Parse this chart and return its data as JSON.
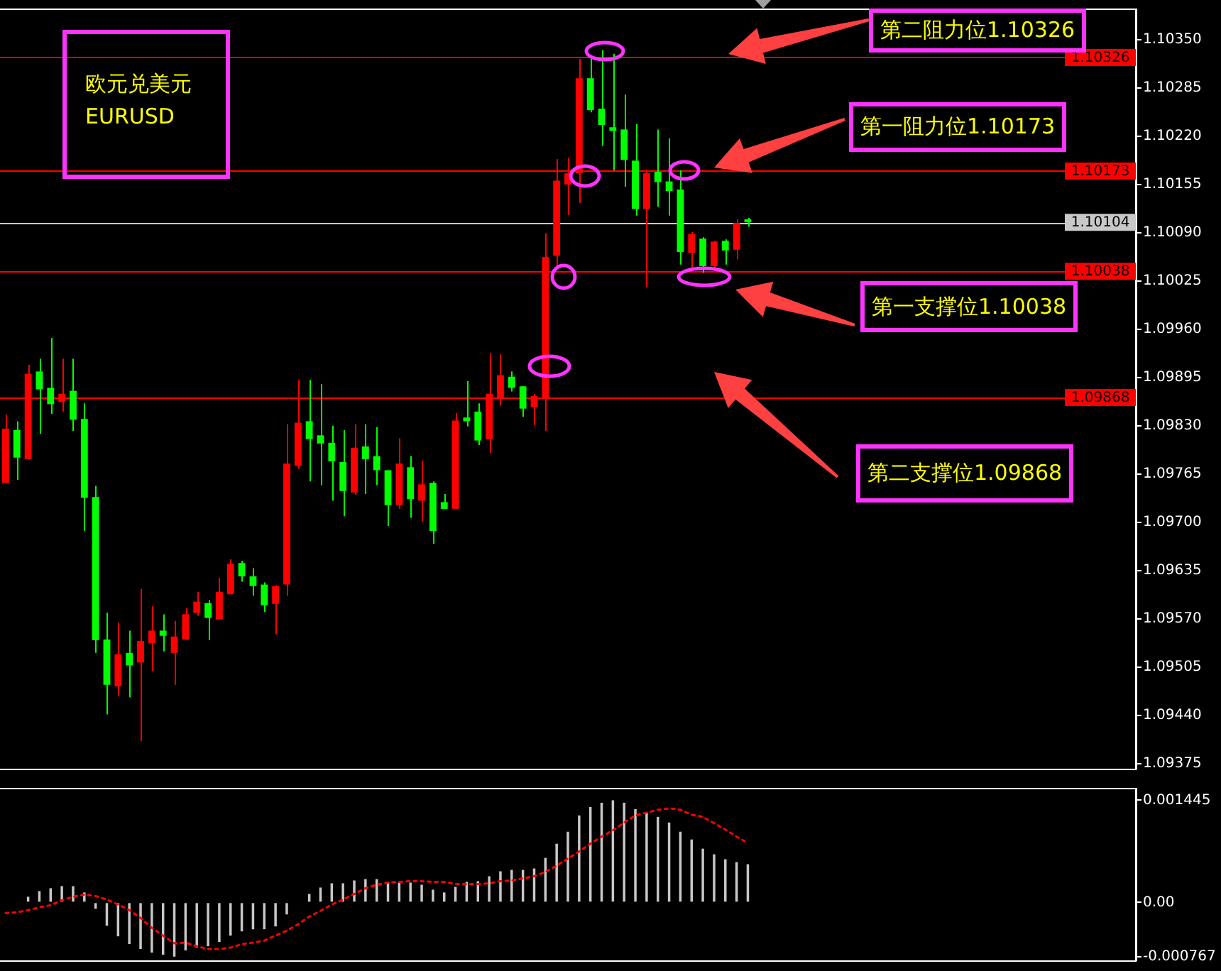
{
  "chart_data": [
    {
      "type": "candlestick",
      "categories": [
        null,
        null,
        null,
        null,
        null,
        null,
        null,
        null,
        null,
        null,
        null,
        null,
        null,
        null,
        null,
        null,
        null,
        null,
        null,
        null,
        null,
        null,
        null,
        null,
        null,
        null,
        null,
        null,
        null,
        null,
        null,
        null,
        null,
        null,
        null,
        null,
        null,
        null,
        null,
        null,
        null,
        null,
        null,
        null,
        null,
        null,
        null,
        null,
        null,
        null,
        null,
        null,
        null,
        null,
        null,
        null,
        null,
        null,
        null,
        null,
        null,
        null,
        null,
        null,
        null,
        null,
        null,
        null,
        null,
        null,
        null,
        null,
        null,
        null,
        null,
        null,
        null,
        null,
        null,
        null,
        null,
        null,
        null,
        null,
        null,
        null,
        null,
        null,
        null,
        null,
        null,
        null,
        null,
        null,
        null,
        null,
        null,
        null,
        null,
        null,
        null
      ],
      "ohlc": [
        [
          1.09753,
          1.09845,
          1.09753,
          1.09826
        ],
        [
          1.09824,
          1.09836,
          1.09757,
          1.09787
        ],
        [
          1.09785,
          1.09912,
          1.09784,
          1.099
        ],
        [
          1.09903,
          1.0992,
          1.09819,
          1.09879
        ],
        [
          1.09881,
          1.09948,
          1.09846,
          1.09859
        ],
        [
          1.09862,
          1.0992,
          1.09849,
          1.09873
        ],
        [
          1.09877,
          1.0992,
          1.09823,
          1.09838
        ],
        [
          1.09839,
          1.0986,
          1.09688,
          1.09733
        ],
        [
          1.09734,
          1.09749,
          1.09524,
          1.09541
        ],
        [
          1.09542,
          1.09578,
          1.09441,
          1.09481
        ],
        [
          1.09479,
          1.09565,
          1.09466,
          1.09522
        ],
        [
          1.09524,
          1.09554,
          1.09464,
          1.09507
        ],
        [
          1.09511,
          1.0961,
          1.09405,
          1.0954
        ],
        [
          1.09537,
          1.09587,
          1.095,
          1.09554
        ],
        [
          1.09554,
          1.09576,
          1.09526,
          1.09547
        ],
        [
          1.09524,
          1.09567,
          1.09481,
          1.09546
        ],
        [
          1.09542,
          1.09584,
          1.09541,
          1.09576
        ],
        [
          1.09578,
          1.09606,
          1.09574,
          1.09593
        ],
        [
          1.09591,
          1.09595,
          1.09541,
          1.09571
        ],
        [
          1.09569,
          1.09625,
          1.09569,
          1.09606
        ],
        [
          1.09603,
          1.0965,
          1.09603,
          1.09644
        ],
        [
          1.09645,
          1.09648,
          1.0962,
          1.09627
        ],
        [
          1.09627,
          1.09638,
          1.09601,
          1.09614
        ],
        [
          1.09616,
          1.09619,
          1.09579,
          1.09588
        ],
        [
          1.0959,
          1.09615,
          1.09549,
          1.09614
        ],
        [
          1.09616,
          1.09832,
          1.09601,
          1.09779
        ],
        [
          1.09776,
          1.09892,
          1.09772,
          1.09834
        ],
        [
          1.09836,
          1.09892,
          1.09755,
          1.09812
        ],
        [
          1.09817,
          1.09886,
          1.0975,
          1.09806
        ],
        [
          1.09807,
          1.0983,
          1.09729,
          1.09782
        ],
        [
          1.09781,
          1.09824,
          1.09708,
          1.09742
        ],
        [
          1.0974,
          1.09832,
          1.09737,
          1.098
        ],
        [
          1.09802,
          1.09832,
          1.09738,
          1.09785
        ],
        [
          1.09789,
          1.09828,
          1.0975,
          1.0977
        ],
        [
          1.0977,
          1.0977,
          1.09695,
          1.09723
        ],
        [
          1.09723,
          1.09813,
          1.09718,
          1.09779
        ],
        [
          1.09774,
          1.09789,
          1.09706,
          1.09731
        ],
        [
          1.09729,
          1.09783,
          1.09701,
          1.09751
        ],
        [
          1.09753,
          1.09755,
          1.09671,
          1.09688
        ],
        [
          1.09727,
          1.09738,
          1.09718,
          1.09718
        ],
        [
          1.09718,
          1.09847,
          1.09718,
          1.09837
        ],
        [
          1.09841,
          1.0989,
          1.09829,
          1.09836
        ],
        [
          1.09849,
          1.0986,
          1.09804,
          1.0981
        ],
        [
          1.09812,
          1.09928,
          1.09793,
          1.09873
        ],
        [
          1.09868,
          1.09926,
          1.09857,
          1.09898
        ],
        [
          1.09896,
          1.09903,
          1.09876,
          1.09881
        ],
        [
          1.09883,
          1.09883,
          1.09842,
          1.09853
        ],
        [
          1.09855,
          1.09873,
          1.09831,
          1.0987
        ],
        [
          1.09867,
          1.10089,
          1.09823,
          1.10057
        ],
        [
          1.10059,
          1.10189,
          1.10042,
          1.1016
        ],
        [
          1.10155,
          1.10191,
          1.10114,
          1.1017
        ],
        [
          1.1017,
          1.10324,
          1.1013,
          1.10298
        ],
        [
          1.10298,
          1.10326,
          1.10252,
          1.10255
        ],
        [
          1.10257,
          1.10336,
          1.10207,
          1.10235
        ],
        [
          1.10232,
          1.10331,
          1.10174,
          1.10227
        ],
        [
          1.10229,
          1.10276,
          1.10152,
          1.10188
        ],
        [
          1.10187,
          1.10236,
          1.10113,
          1.10122
        ],
        [
          1.10122,
          1.10175,
          1.10017,
          1.1017
        ],
        [
          1.10172,
          1.10229,
          1.10125,
          1.10158
        ],
        [
          1.10159,
          1.10217,
          1.10113,
          1.10146
        ],
        [
          1.10148,
          1.10174,
          1.10047,
          1.10064
        ],
        [
          1.10063,
          1.10091,
          1.10042,
          1.10088
        ],
        [
          1.10082,
          1.10084,
          1.10036,
          1.10045
        ],
        [
          1.10045,
          1.10079,
          1.10037,
          1.10078
        ],
        [
          1.10079,
          1.10081,
          1.10047,
          1.10066
        ],
        [
          1.10067,
          1.10108,
          1.10054,
          1.10103
        ],
        [
          1.10108,
          1.1011,
          1.10098,
          1.10104
        ],
        null,
        null,
        null,
        null,
        null,
        null,
        null,
        null,
        null,
        null,
        null,
        null,
        null,
        null,
        null,
        null,
        null,
        null,
        null,
        null,
        null,
        null,
        null,
        null,
        null,
        null,
        null,
        null,
        null,
        null,
        null,
        null,
        null,
        null
      ],
      "colors": [
        "#ff0000",
        "#00ff00",
        "#ff0000",
        "#00ff00",
        "#00ff00",
        "#ff0000",
        "#00ff00",
        "#00ff00",
        "#00ff00",
        "#00ff00",
        "#ff0000",
        "#00ff00",
        "#ff0000",
        "#ff0000",
        "#00ff00",
        "#ff0000",
        "#ff0000",
        "#ff0000",
        "#00ff00",
        "#ff0000",
        "#ff0000",
        "#00ff00",
        "#00ff00",
        "#00ff00",
        "#ff0000",
        "#ff0000",
        "#ff0000",
        "#00ff00",
        "#00ff00",
        "#00ff00",
        "#00ff00",
        "#ff0000",
        "#00ff00",
        "#00ff00",
        "#00ff00",
        "#ff0000",
        "#00ff00",
        "#ff0000",
        "#00ff00",
        "#00ff00",
        "#ff0000",
        "#00ff00",
        "#00ff00",
        "#ff0000",
        "#ff0000",
        "#00ff00",
        "#00ff00",
        "#ff0000",
        "#ff0000",
        "#ff0000",
        "#ff0000",
        "#ff0000",
        "#00ff00",
        "#00ff00",
        "#00ff00",
        "#00ff00",
        "#00ff00",
        "#ff0000",
        "#00ff00",
        "#00ff00",
        "#00ff00",
        "#ff0000",
        "#00ff00",
        "#ff0000",
        "#00ff00",
        "#ff0000",
        "#00ff00",
        null,
        null,
        null,
        null,
        null,
        null,
        null,
        null,
        null,
        null,
        null,
        null,
        null,
        null,
        null,
        null,
        null,
        null,
        null,
        null,
        null,
        null,
        null,
        null,
        null,
        null,
        null,
        null,
        null,
        null,
        null,
        null,
        null,
        null
      ],
      "ylim": [
        1.09367,
        1.1039
      ],
      "yticks": [
        {
          "value": 1.1035,
          "label": "1.10350"
        },
        {
          "value": 1.10285,
          "label": "1.10285"
        },
        {
          "value": 1.1022,
          "label": "1.10220"
        },
        {
          "value": 1.10155,
          "label": "1.10155"
        },
        {
          "value": 1.1009,
          "label": "1.10090"
        },
        {
          "value": 1.10025,
          "label": "1.10025"
        },
        {
          "value": 1.0996,
          "label": "1.09960"
        },
        {
          "value": 1.09895,
          "label": "1.09895"
        },
        {
          "value": 1.0983,
          "label": "1.09830"
        },
        {
          "value": 1.09765,
          "label": "1.09765"
        },
        {
          "value": 1.097,
          "label": "1.09700"
        },
        {
          "value": 1.09635,
          "label": "1.09635"
        },
        {
          "value": 1.0957,
          "label": "1.09570"
        },
        {
          "value": 1.09505,
          "label": "1.09505"
        },
        {
          "value": 1.0944,
          "label": "1.09440"
        },
        {
          "value": 1.09375,
          "label": "1.09375"
        }
      ],
      "ref_lines": [
        {
          "axis": "y",
          "value": 1.10326,
          "label": "1.10326",
          "color": "#ff0000"
        },
        {
          "axis": "y",
          "value": 1.10173,
          "label": "1.10173",
          "color": "#ff0000"
        },
        {
          "axis": "y",
          "value": 1.10104,
          "label": "1.10104",
          "color": "#c8c8c8"
        },
        {
          "axis": "y",
          "value": 1.10038,
          "label": "1.10038",
          "color": "#ff0000"
        },
        {
          "axis": "y",
          "value": 1.09868,
          "label": "1.09868",
          "color": "#ff0000"
        }
      ],
      "annotations": [
        "欧元兑美元",
        "EURUSD",
        "第二阻力位1.10326",
        "第一阻力位1.10173",
        "第一支撑位1.10038",
        "第二支撑位1.09868"
      ],
      "tick_labels": "y"
    },
    {
      "type": "bar",
      "categories": [
        null,
        null,
        null,
        null,
        null,
        null,
        null,
        null,
        null,
        null,
        null,
        null,
        null,
        null,
        null,
        null,
        null,
        null,
        null,
        null,
        null,
        null,
        null,
        null,
        null,
        null,
        null,
        null,
        null,
        null,
        null,
        null,
        null,
        null,
        null,
        null,
        null,
        null,
        null,
        null,
        null,
        null,
        null,
        null,
        null,
        null,
        null,
        null,
        null,
        null,
        null,
        null,
        null,
        null,
        null,
        null,
        null,
        null,
        null,
        null,
        null,
        null,
        null,
        null,
        null,
        null,
        null,
        null,
        null,
        null,
        null,
        null,
        null,
        null,
        null,
        null,
        null,
        null,
        null,
        null,
        null,
        null,
        null,
        null,
        null,
        null,
        null,
        null,
        null,
        null,
        null,
        null,
        null,
        null,
        null,
        null,
        null,
        null,
        null,
        null,
        null
      ],
      "series": [
        {
          "color": "#c8c8c8",
          "values": [
            1e-05,
            1e-05,
            8e-05,
            0.00016,
            0.0002,
            0.00023,
            0.00023,
            0.00014,
            -9e-05,
            -0.00033,
            -0.00048,
            -0.00059,
            -0.00066,
            -0.00071,
            -0.00074,
            -0.000767,
            -0.00068,
            -0.00064,
            -0.00062,
            -0.00056,
            -0.00047,
            -0.00041,
            -0.00038,
            -0.00038,
            -0.00034,
            -0.00017,
            0,
            0.00012,
            0.00021,
            0.00027,
            0.00027,
            0.00031,
            0.00033,
            0.00033,
            0.00029,
            0.00028,
            0.00028,
            0.00025,
            0.00018,
            0.00014,
            0.00022,
            0.00029,
            0.0003,
            0.00037,
            0.00044,
            0.00046,
            0.00046,
            0.00048,
            0.00063,
            0.00083,
            0.001,
            0.00123,
            0.00135,
            0.00141,
            0.001445,
            0.00141,
            0.00132,
            0.00127,
            0.00121,
            0.00113,
            0.001,
            0.00089,
            0.00076,
            0.00068,
            0.00061,
            0.00057,
            0.00054,
            null,
            null,
            null,
            null,
            null,
            null,
            null,
            null,
            null,
            null,
            null,
            null,
            null,
            null,
            null,
            null,
            null,
            null,
            null,
            null,
            null,
            null,
            null,
            null,
            null,
            null,
            null,
            null,
            null,
            null,
            null,
            null,
            null,
            null
          ]
        },
        {
          "type": "line",
          "color": "#ff0000",
          "line_style": "dotted",
          "values": [
            -0.00015,
            -0.00014,
            -0.00011,
            -7e-05,
            -4e-05,
            3e-05,
            8e-05,
            0.00011,
            9e-05,
            4e-05,
            -3e-05,
            -0.00011,
            -0.00022,
            -0.00036,
            -0.00047,
            -0.00058,
            -0.00057,
            -0.00062,
            -0.00066,
            -0.00066,
            -0.00064,
            -0.00059,
            -0.00057,
            -0.00054,
            -0.00047,
            -0.0004,
            -0.00031,
            -0.0002,
            -0.00012,
            -3e-05,
            4e-05,
            0.00012,
            0.0002,
            0.00025,
            0.00028,
            0.00029,
            0.0003,
            0.0003,
            0.00029,
            0.00029,
            0.00026,
            0.00026,
            0.00026,
            0.00027,
            0.0003,
            0.00031,
            0.00034,
            0.00037,
            0.00043,
            0.00052,
            0.00062,
            0.00072,
            0.00083,
            0.00093,
            0.00102,
            0.00113,
            0.00123,
            0.00127,
            0.00131,
            0.00133,
            0.00131,
            0.00124,
            0.00121,
            0.00112,
            0.00103,
            0.00093,
            0.00084,
            null,
            null,
            null,
            null,
            null,
            null,
            null,
            null,
            null,
            null,
            null,
            null,
            null,
            null,
            null,
            null,
            null,
            null,
            null,
            null,
            null,
            null,
            null,
            null,
            null,
            null,
            null,
            null,
            null,
            null,
            null,
            null,
            null,
            null
          ]
        }
      ],
      "ylim": [
        -0.00083,
        0.0016
      ],
      "yticks": [
        {
          "value": 0.001445,
          "label": "0.001445"
        },
        {
          "value": 0,
          "label": "0.00"
        },
        {
          "value": -0.000767,
          "label": "-0.000767"
        }
      ],
      "marker": "none",
      "tick_labels": "y"
    }
  ]
}
